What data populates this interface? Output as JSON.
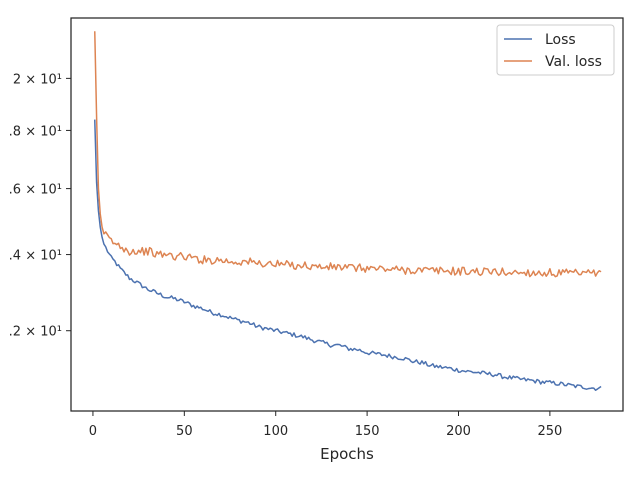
{
  "chart_data": {
    "type": "line",
    "title": "",
    "xlabel": "Epochs",
    "ylabel": "",
    "xlim": [
      -12,
      290
    ],
    "ylim": [
      1.02,
      2.26
    ],
    "y_scale": "log",
    "grid": false,
    "legend_position": "top-right",
    "x_ticks": [
      0,
      50,
      100,
      150,
      200,
      250
    ],
    "x_tick_labels": [
      "0",
      "50",
      "100",
      "150",
      "200",
      "250"
    ],
    "y_ticks": [
      1.2,
      1.4,
      1.6,
      1.8,
      2.0
    ],
    "y_tick_labels": [
      ".2 × 10¹",
      ".4 × 10¹",
      ".6 × 10¹",
      ".8 × 10¹",
      "2 × 10¹"
    ],
    "colors": {
      "loss": "#4c72b0",
      "val_loss": "#dd8452",
      "axis": "#262626"
    },
    "series": [
      {
        "name": "Loss",
        "x": [
          1,
          2,
          3,
          4,
          5,
          6,
          8,
          10,
          12,
          15,
          18,
          20,
          25,
          30,
          35,
          40,
          45,
          50,
          55,
          60,
          65,
          70,
          75,
          80,
          85,
          90,
          95,
          100,
          105,
          110,
          115,
          120,
          125,
          130,
          135,
          140,
          145,
          150,
          155,
          160,
          165,
          170,
          175,
          180,
          185,
          190,
          195,
          200,
          205,
          210,
          215,
          220,
          225,
          230,
          235,
          240,
          245,
          250,
          255,
          260,
          265,
          270,
          275,
          278
        ],
        "values": [
          1.84,
          1.62,
          1.53,
          1.48,
          1.45,
          1.43,
          1.41,
          1.39,
          1.38,
          1.36,
          1.345,
          1.335,
          1.32,
          1.305,
          1.295,
          1.285,
          1.28,
          1.272,
          1.262,
          1.255,
          1.245,
          1.24,
          1.232,
          1.225,
          1.22,
          1.21,
          1.205,
          1.2,
          1.195,
          1.19,
          1.185,
          1.178,
          1.172,
          1.166,
          1.165,
          1.157,
          1.155,
          1.148,
          1.145,
          1.142,
          1.138,
          1.135,
          1.128,
          1.125,
          1.118,
          1.115,
          1.112,
          1.108,
          1.105,
          1.103,
          1.1,
          1.098,
          1.093,
          1.09,
          1.087,
          1.085,
          1.082,
          1.08,
          1.078,
          1.075,
          1.072,
          1.07,
          1.068,
          1.068
        ]
      },
      {
        "name": "Val. loss",
        "x": [
          1,
          2,
          3,
          4,
          5,
          6,
          8,
          10,
          12,
          15,
          18,
          20,
          25,
          30,
          35,
          40,
          45,
          50,
          55,
          60,
          65,
          70,
          75,
          80,
          85,
          90,
          95,
          100,
          105,
          110,
          115,
          120,
          125,
          130,
          135,
          140,
          145,
          150,
          155,
          160,
          165,
          170,
          175,
          180,
          185,
          190,
          195,
          200,
          205,
          210,
          215,
          220,
          225,
          230,
          235,
          240,
          245,
          250,
          255,
          260,
          265,
          270,
          275,
          278
        ],
        "values": [
          2.2,
          1.85,
          1.6,
          1.52,
          1.48,
          1.46,
          1.45,
          1.44,
          1.43,
          1.425,
          1.415,
          1.41,
          1.41,
          1.41,
          1.4,
          1.4,
          1.395,
          1.395,
          1.39,
          1.385,
          1.385,
          1.385,
          1.38,
          1.38,
          1.38,
          1.375,
          1.375,
          1.372,
          1.372,
          1.37,
          1.37,
          1.367,
          1.365,
          1.365,
          1.365,
          1.363,
          1.362,
          1.362,
          1.36,
          1.36,
          1.358,
          1.357,
          1.357,
          1.356,
          1.355,
          1.355,
          1.354,
          1.354,
          1.353,
          1.353,
          1.352,
          1.352,
          1.351,
          1.35,
          1.35,
          1.35,
          1.349,
          1.349,
          1.348,
          1.348,
          1.347,
          1.347,
          1.346,
          1.346
        ]
      }
    ]
  }
}
